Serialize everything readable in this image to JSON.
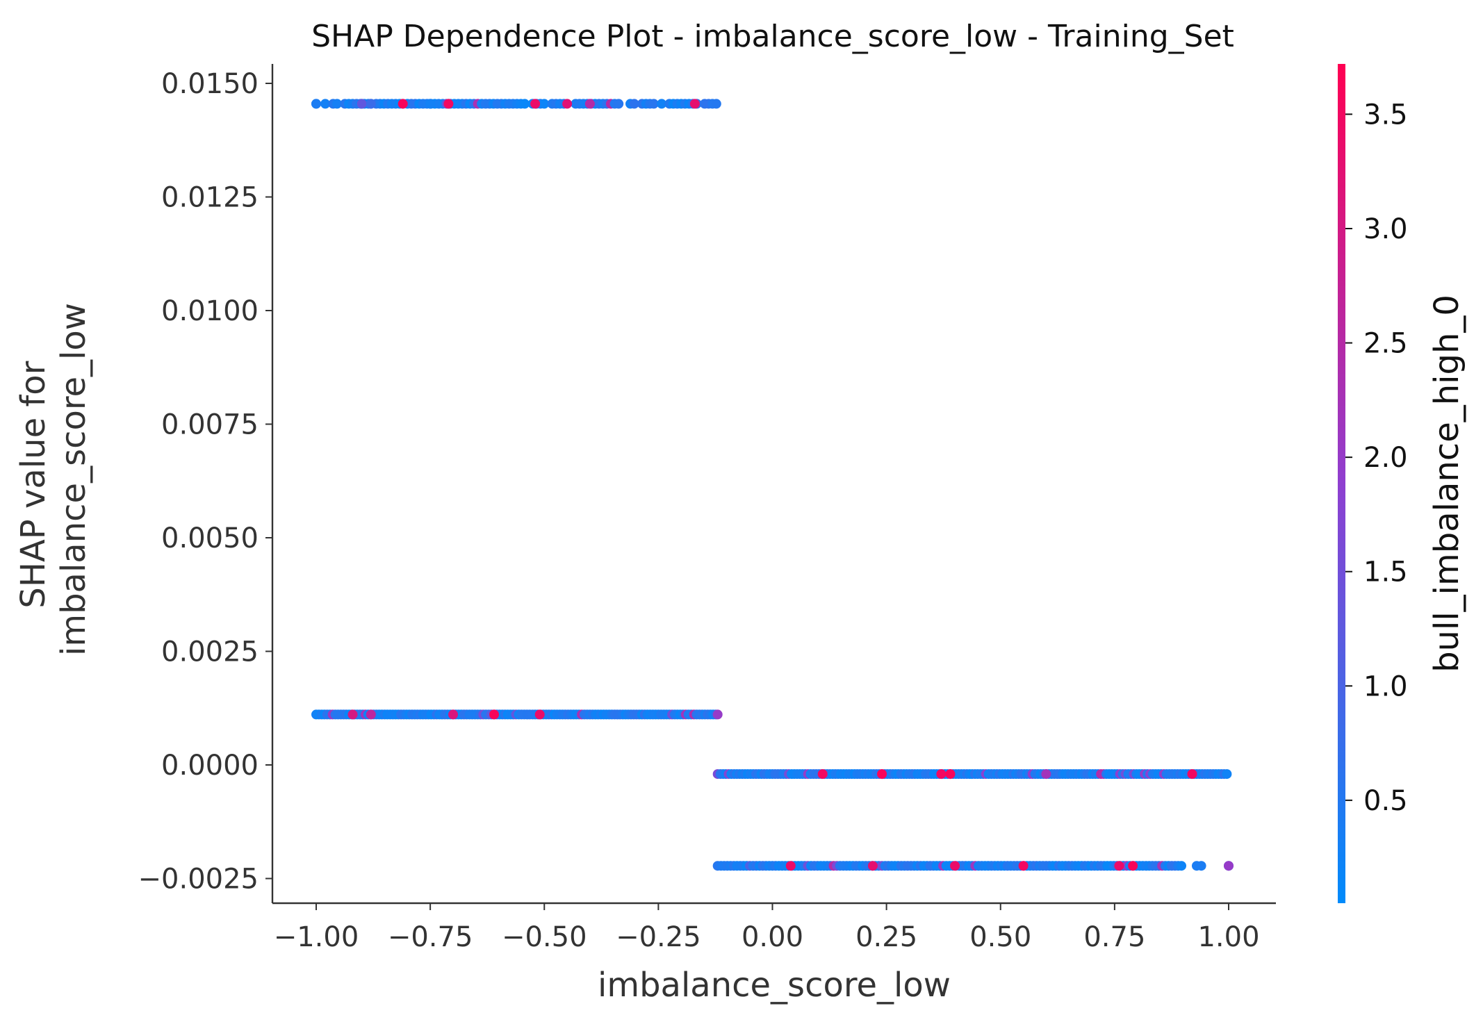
{
  "chart_data": {
    "type": "scatter",
    "title": "SHAP Dependence Plot - imbalance_score_low - Training_Set",
    "xlabel": "imbalance_score_low",
    "ylabel_lines": [
      "SHAP value for",
      "imbalance_score_low"
    ],
    "xlim": [
      -1.1,
      1.1
    ],
    "ylim": [
      -0.00305,
      0.0154
    ],
    "x_ticks": [
      -1.0,
      -0.75,
      -0.5,
      -0.25,
      0.0,
      0.25,
      0.5,
      0.75,
      1.0
    ],
    "x_tick_labels": [
      "−1.00",
      "−0.75",
      "−0.50",
      "−0.25",
      "0.00",
      "0.25",
      "0.50",
      "0.75",
      "1.00"
    ],
    "y_ticks": [
      -0.0025,
      0.0,
      0.0025,
      0.005,
      0.0075,
      0.01,
      0.0125,
      0.015
    ],
    "y_tick_labels": [
      "−0.0025",
      "0.0000",
      "0.0025",
      "0.0050",
      "0.0075",
      "0.0100",
      "0.0125",
      "0.0150"
    ],
    "grid": false,
    "colorbar": {
      "label": "bull_imbalance_high_0",
      "range": [
        0.05,
        3.72
      ],
      "ticks": [
        0.5,
        1.0,
        1.5,
        2.0,
        2.5,
        3.0,
        3.5
      ],
      "tick_labels": [
        "0.5",
        "1.0",
        "1.5",
        "2.0",
        "2.5",
        "3.0",
        "3.5"
      ],
      "color_low": "#008bfb",
      "color_high": "#ff0052"
    },
    "bands": [
      {
        "y": 0.01455,
        "x_range": [
          -0.98,
          -0.12
        ],
        "density": 0.7,
        "extra_x": [
          -1.0,
          -0.9,
          -0.88,
          -0.81,
          -0.75,
          -0.71
        ]
      },
      {
        "y": 0.00111,
        "x_range": [
          -1.0,
          -0.12
        ],
        "density": 1.0,
        "extra_x": []
      },
      {
        "y": -0.0002,
        "x_range": [
          -0.12,
          1.0
        ],
        "density": 1.0,
        "extra_x": []
      },
      {
        "y": -0.00222,
        "x_range": [
          -0.12,
          0.9
        ],
        "density": 0.85,
        "extra_x": [
          0.93,
          0.94,
          1.0
        ]
      }
    ],
    "highlight_points": [
      {
        "x": -1.0,
        "y": 0.01455,
        "c": 0.4
      },
      {
        "x": -0.9,
        "y": 0.01455,
        "c": 1.3
      },
      {
        "x": -0.88,
        "y": 0.01455,
        "c": 0.8
      },
      {
        "x": -0.81,
        "y": 0.01455,
        "c": 3.6
      },
      {
        "x": -0.75,
        "y": 0.01455,
        "c": 0.3
      },
      {
        "x": -0.71,
        "y": 0.01455,
        "c": 3.5
      },
      {
        "x": -0.52,
        "y": 0.01455,
        "c": 3.4
      },
      {
        "x": -0.45,
        "y": 0.01455,
        "c": 3.2
      },
      {
        "x": -0.4,
        "y": 0.01455,
        "c": 2.5
      },
      {
        "x": -0.17,
        "y": 0.01455,
        "c": 3.3
      },
      {
        "x": -0.92,
        "y": 0.00111,
        "c": 3.0
      },
      {
        "x": -0.88,
        "y": 0.00111,
        "c": 2.6
      },
      {
        "x": -0.7,
        "y": 0.00111,
        "c": 3.1
      },
      {
        "x": -0.61,
        "y": 0.00111,
        "c": 3.6
      },
      {
        "x": -0.51,
        "y": 0.00111,
        "c": 3.4
      },
      {
        "x": -0.12,
        "y": 0.00111,
        "c": 2.0
      },
      {
        "x": 0.04,
        "y": -0.00222,
        "c": 3.4
      },
      {
        "x": 0.11,
        "y": -0.0002,
        "c": 3.5
      },
      {
        "x": 0.22,
        "y": -0.00222,
        "c": 3.3
      },
      {
        "x": 0.24,
        "y": -0.0002,
        "c": 3.6
      },
      {
        "x": 0.37,
        "y": -0.0002,
        "c": 3.5
      },
      {
        "x": 0.39,
        "y": -0.0002,
        "c": 3.6
      },
      {
        "x": 0.4,
        "y": -0.00222,
        "c": 3.4
      },
      {
        "x": 0.55,
        "y": -0.00222,
        "c": 3.5
      },
      {
        "x": 0.6,
        "y": -0.0002,
        "c": 2.2
      },
      {
        "x": 0.76,
        "y": -0.00222,
        "c": 3.4
      },
      {
        "x": 0.79,
        "y": -0.00222,
        "c": 3.6
      },
      {
        "x": 0.92,
        "y": -0.0002,
        "c": 3.5
      },
      {
        "x": 1.0,
        "y": -0.00222,
        "c": 2.0
      }
    ]
  }
}
